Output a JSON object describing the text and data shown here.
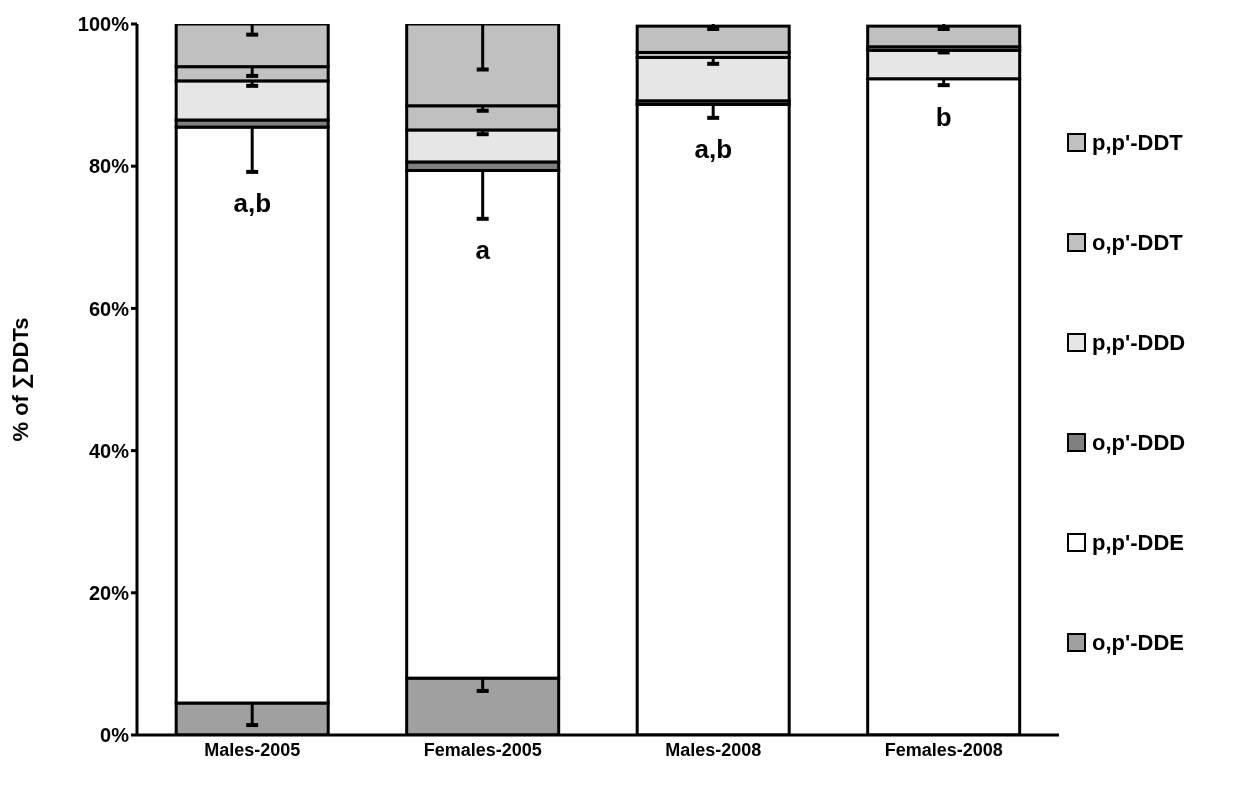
{
  "chart_data": {
    "type": "bar",
    "stacked": true,
    "ylabel": "% of ∑DDTs",
    "categories": [
      "Males-2005",
      "Females-2005",
      "Males-2008",
      "Females-2008"
    ],
    "series": [
      {
        "name": "o,p'-DDE",
        "color": "#a0a0a0",
        "values": [
          4.5,
          8.0,
          null,
          null
        ],
        "errors": [
          [
            1.4,
            4.5
          ],
          [
            6.2,
            8.0
          ],
          null,
          null
        ]
      },
      {
        "name": "p,p'-DDE",
        "color": "#ffffff",
        "values": [
          81.0,
          71.4,
          88.7,
          92.3
        ],
        "errors": [
          [
            79.2,
            85.5
          ],
          [
            72.6,
            79.4
          ],
          [
            86.8,
            89.0
          ],
          [
            91.4,
            92.4
          ]
        ]
      },
      {
        "name": "o,p'-DDD",
        "color": "#808080",
        "values": [
          1.0,
          1.2,
          0.5,
          null
        ],
        "errors": [
          null,
          null,
          null,
          null
        ]
      },
      {
        "name": "p,p'-DDD",
        "color": "#e6e6e6",
        "values": [
          5.5,
          4.5,
          6.1,
          4.0
        ],
        "errors": [
          [
            91.3,
            92.0
          ],
          [
            84.5,
            85.1
          ],
          [
            94.4,
            95.6
          ],
          [
            96.0,
            96.6
          ]
        ]
      },
      {
        "name": "o,p'-DDT",
        "color": "#c0c0c0",
        "values": [
          2.0,
          3.4,
          0.7,
          0.5
        ],
        "errors": [
          [
            92.7,
            94.0
          ],
          [
            87.8,
            88.5
          ],
          null,
          null
        ]
      },
      {
        "name": "p,p'-DDT",
        "color": "#c0c0c0",
        "values": [
          6.0,
          11.5,
          3.7,
          2.9
        ],
        "errors": [
          [
            98.5,
            100
          ],
          [
            93.6,
            100
          ],
          [
            99.3,
            100
          ],
          [
            99.3,
            100
          ]
        ]
      }
    ],
    "ylim": [
      0,
      100
    ],
    "yticks": [
      {
        "value": 0,
        "label": "0%"
      },
      {
        "value": 20,
        "label": "20%"
      },
      {
        "value": 40,
        "label": "40%"
      },
      {
        "value": 60,
        "label": "60%"
      },
      {
        "value": 80,
        "label": "80%"
      },
      {
        "value": 100,
        "label": "100%"
      }
    ],
    "grid": false,
    "legend": "right",
    "annotations": [
      "a,b",
      "a",
      "a,b",
      "b"
    ]
  }
}
